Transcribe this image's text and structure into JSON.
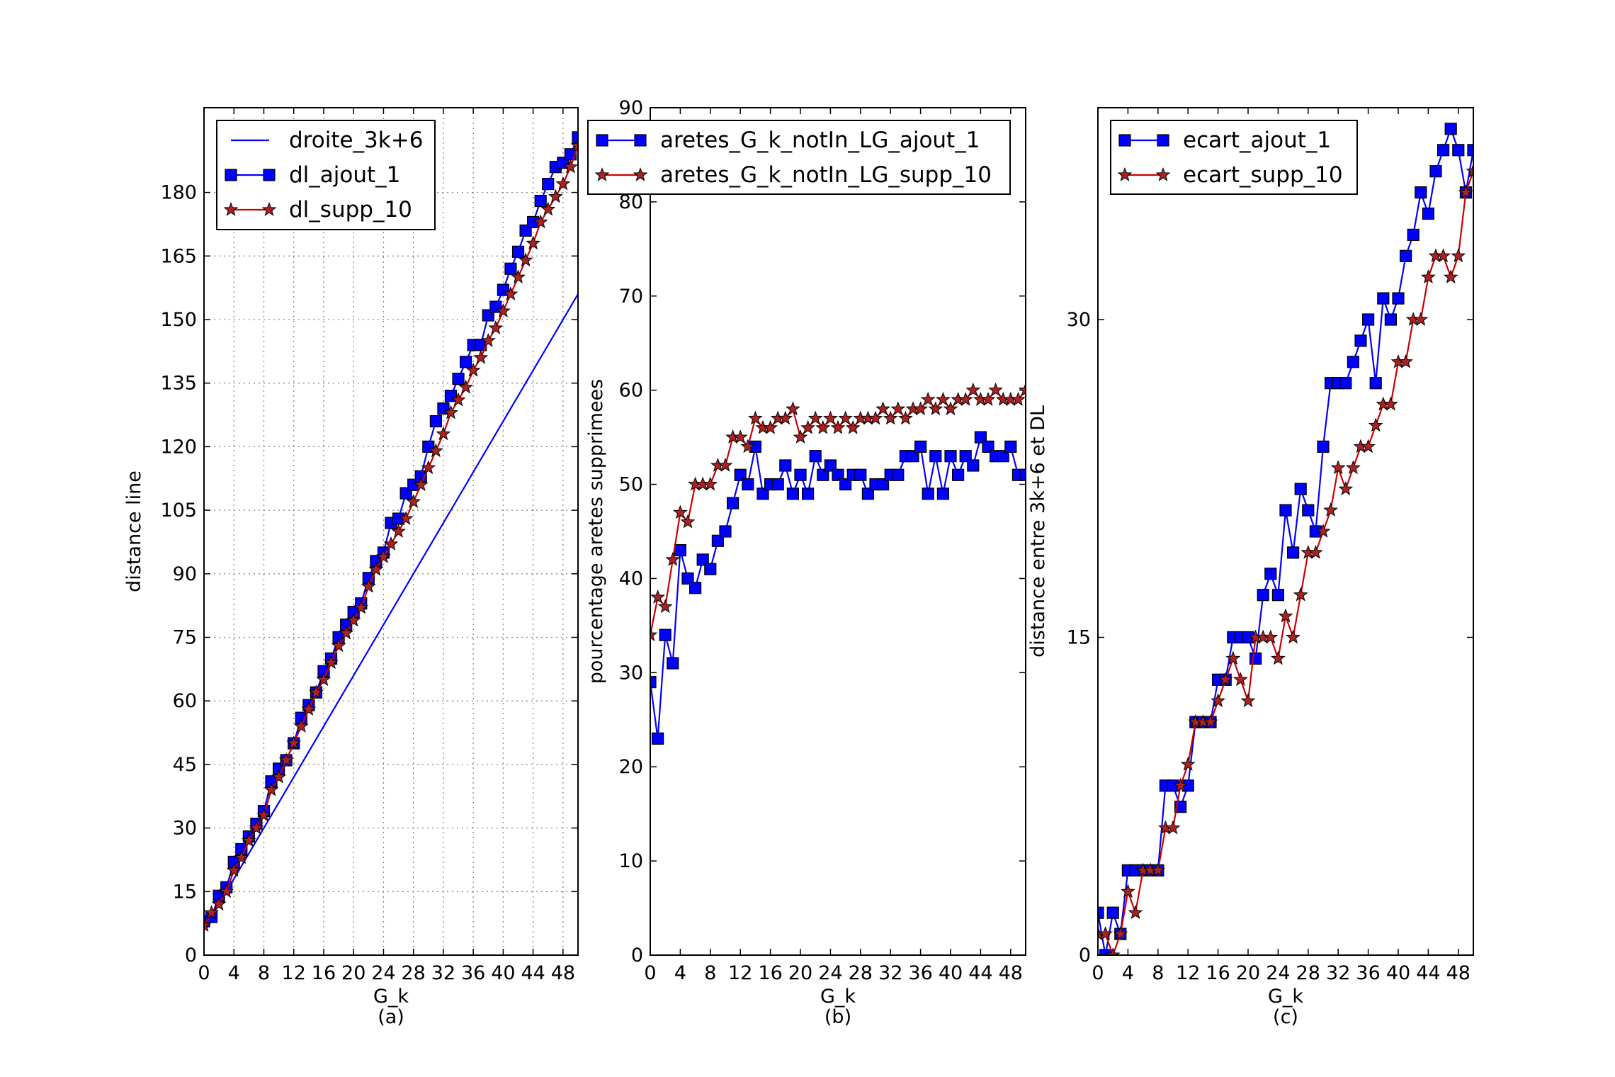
{
  "colors": {
    "blue": "#0000ff",
    "red": "#cc0000",
    "star_fill": "#aa2222",
    "grid": "#888888",
    "axis": "#000000"
  },
  "chart_data": [
    {
      "type": "line",
      "caption": "(a)",
      "xlabel": "G_k",
      "ylabel": "distance line",
      "xlim": [
        0,
        50
      ],
      "ylim": [
        0,
        200
      ],
      "xticks": [
        0,
        4,
        8,
        12,
        16,
        20,
        24,
        28,
        32,
        36,
        40,
        44,
        48
      ],
      "yticks": [
        0,
        15,
        30,
        45,
        60,
        75,
        90,
        105,
        120,
        135,
        150,
        165,
        180
      ],
      "grid": true,
      "legend_position": "top-left",
      "series": [
        {
          "name": "droite_3k+6",
          "style": "line",
          "color": "#0000ff",
          "x": [
            0,
            50
          ],
          "y": [
            6,
            156
          ]
        },
        {
          "name": "dl_ajout_1",
          "style": "square",
          "color": "#0000ff",
          "x": [
            0,
            1,
            2,
            3,
            4,
            5,
            6,
            7,
            8,
            9,
            10,
            11,
            12,
            13,
            14,
            15,
            16,
            17,
            18,
            19,
            20,
            21,
            22,
            23,
            24,
            25,
            26,
            27,
            28,
            29,
            30,
            31,
            32,
            33,
            34,
            35,
            36,
            37,
            38,
            39,
            40,
            41,
            42,
            43,
            44,
            45,
            46,
            47,
            48,
            49,
            50
          ],
          "y": [
            8,
            9,
            14,
            16,
            22,
            25,
            28,
            31,
            34,
            41,
            44,
            46,
            50,
            56,
            59,
            62,
            67,
            70,
            75,
            78,
            81,
            83,
            89,
            93,
            95,
            102,
            103,
            109,
            111,
            113,
            120,
            126,
            129,
            132,
            136,
            140,
            144,
            144,
            151,
            153,
            157,
            162,
            166,
            171,
            173,
            178,
            182,
            186,
            187,
            189,
            193
          ]
        },
        {
          "name": "dl_supp_10",
          "style": "star",
          "color": "#cc0000",
          "x": [
            0,
            1,
            2,
            3,
            4,
            5,
            6,
            7,
            8,
            9,
            10,
            11,
            12,
            13,
            14,
            15,
            16,
            17,
            18,
            19,
            20,
            21,
            22,
            23,
            24,
            25,
            26,
            27,
            28,
            29,
            30,
            31,
            32,
            33,
            34,
            35,
            36,
            37,
            38,
            39,
            40,
            41,
            42,
            43,
            44,
            45,
            46,
            47,
            48,
            49,
            50
          ],
          "y": [
            7,
            10,
            12,
            15,
            20,
            23,
            27,
            30,
            33,
            39,
            42,
            46,
            50,
            54,
            58,
            62,
            65,
            69,
            73,
            76,
            79,
            82,
            87,
            91,
            94,
            97,
            100,
            103,
            107,
            111,
            115,
            119,
            123,
            128,
            131,
            134,
            138,
            141,
            145,
            148,
            152,
            156,
            160,
            164,
            168,
            173,
            176,
            179,
            182,
            186,
            191
          ]
        }
      ]
    },
    {
      "type": "line",
      "caption": "(b)",
      "xlabel": "G_k",
      "ylabel": "pourcentage aretes supprimees",
      "xlim": [
        0,
        50
      ],
      "ylim": [
        0,
        90
      ],
      "xticks": [
        0,
        4,
        8,
        12,
        16,
        20,
        24,
        28,
        32,
        36,
        40,
        44,
        48
      ],
      "yticks": [
        0,
        10,
        20,
        30,
        40,
        50,
        60,
        70,
        80,
        90
      ],
      "grid": false,
      "legend_position": "top",
      "series": [
        {
          "name": "aretes_G_k_notIn_LG_ajout_1",
          "style": "square",
          "color": "#0000ff",
          "x": [
            0,
            1,
            2,
            3,
            4,
            5,
            6,
            7,
            8,
            9,
            10,
            11,
            12,
            13,
            14,
            15,
            16,
            17,
            18,
            19,
            20,
            21,
            22,
            23,
            24,
            25,
            26,
            27,
            28,
            29,
            30,
            31,
            32,
            33,
            34,
            35,
            36,
            37,
            38,
            39,
            40,
            41,
            42,
            43,
            44,
            45,
            46,
            47,
            48,
            49,
            50
          ],
          "y": [
            29,
            23,
            34,
            31,
            43,
            40,
            39,
            42,
            41,
            44,
            45,
            48,
            51,
            50,
            54,
            49,
            50,
            50,
            52,
            49,
            51,
            49,
            53,
            51,
            52,
            51,
            50,
            51,
            51,
            49,
            50,
            50,
            51,
            51,
            53,
            53,
            54,
            49,
            53,
            49,
            53,
            51,
            53,
            52,
            55,
            54,
            53,
            53,
            54,
            51,
            51
          ]
        },
        {
          "name": "aretes_G_k_notIn_LG_supp_10",
          "style": "star",
          "color": "#cc0000",
          "x": [
            0,
            1,
            2,
            3,
            4,
            5,
            6,
            7,
            8,
            9,
            10,
            11,
            12,
            13,
            14,
            15,
            16,
            17,
            18,
            19,
            20,
            21,
            22,
            23,
            24,
            25,
            26,
            27,
            28,
            29,
            30,
            31,
            32,
            33,
            34,
            35,
            36,
            37,
            38,
            39,
            40,
            41,
            42,
            43,
            44,
            45,
            46,
            47,
            48,
            49,
            50
          ],
          "y": [
            34,
            38,
            37,
            42,
            47,
            46,
            50,
            50,
            50,
            52,
            52,
            55,
            55,
            54,
            57,
            56,
            56,
            57,
            57,
            58,
            55,
            56,
            57,
            56,
            57,
            56,
            57,
            56,
            57,
            57,
            57,
            58,
            57,
            58,
            57,
            58,
            58,
            59,
            58,
            59,
            58,
            59,
            59,
            60,
            59,
            59,
            60,
            59,
            59,
            59,
            60
          ]
        }
      ]
    },
    {
      "type": "line",
      "caption": "(c)",
      "xlabel": "G_k",
      "ylabel": "distance entre 3k+6 et DL",
      "xlim": [
        0,
        50
      ],
      "ylim": [
        0,
        40
      ],
      "xticks": [
        0,
        4,
        8,
        12,
        16,
        20,
        24,
        28,
        32,
        36,
        40,
        44,
        48
      ],
      "yticks": [
        0,
        15,
        30
      ],
      "grid": false,
      "legend_position": "top-left",
      "series": [
        {
          "name": "ecart_ajout_1",
          "style": "square",
          "color": "#0000ff",
          "x": [
            0,
            1,
            2,
            3,
            4,
            5,
            6,
            7,
            8,
            9,
            10,
            11,
            12,
            13,
            14,
            15,
            16,
            17,
            18,
            19,
            20,
            21,
            22,
            23,
            24,
            25,
            26,
            27,
            28,
            29,
            30,
            31,
            32,
            33,
            34,
            35,
            36,
            37,
            38,
            39,
            40,
            41,
            42,
            43,
            44,
            45,
            46,
            47,
            48,
            49,
            50
          ],
          "y": [
            2,
            0,
            2,
            1,
            4,
            4,
            4,
            4,
            4,
            8,
            8,
            7,
            8,
            11,
            11,
            11,
            13,
            13,
            15,
            15,
            15,
            14,
            17,
            18,
            17,
            21,
            19,
            22,
            21,
            20,
            24,
            27,
            27,
            27,
            28,
            29,
            30,
            27,
            31,
            30,
            31,
            33,
            34,
            36,
            35,
            37,
            38,
            39,
            38,
            36,
            38
          ]
        },
        {
          "name": "ecart_supp_10",
          "style": "star",
          "color": "#cc0000",
          "x": [
            0,
            1,
            2,
            3,
            4,
            5,
            6,
            7,
            8,
            9,
            10,
            11,
            12,
            13,
            14,
            15,
            16,
            17,
            18,
            19,
            20,
            21,
            22,
            23,
            24,
            25,
            26,
            27,
            28,
            29,
            30,
            31,
            32,
            33,
            34,
            35,
            36,
            37,
            38,
            39,
            40,
            41,
            42,
            43,
            44,
            45,
            46,
            47,
            48,
            49,
            50
          ],
          "y": [
            1,
            1,
            0,
            1,
            3,
            2,
            4,
            4,
            4,
            6,
            6,
            8,
            9,
            11,
            11,
            11,
            12,
            13,
            14,
            13,
            12,
            15,
            15,
            15,
            14,
            16,
            15,
            17,
            19,
            19,
            20,
            21,
            23,
            22,
            23,
            24,
            24,
            25,
            26,
            26,
            28,
            28,
            30,
            30,
            32,
            33,
            33,
            32,
            33,
            36,
            37
          ]
        }
      ]
    }
  ]
}
